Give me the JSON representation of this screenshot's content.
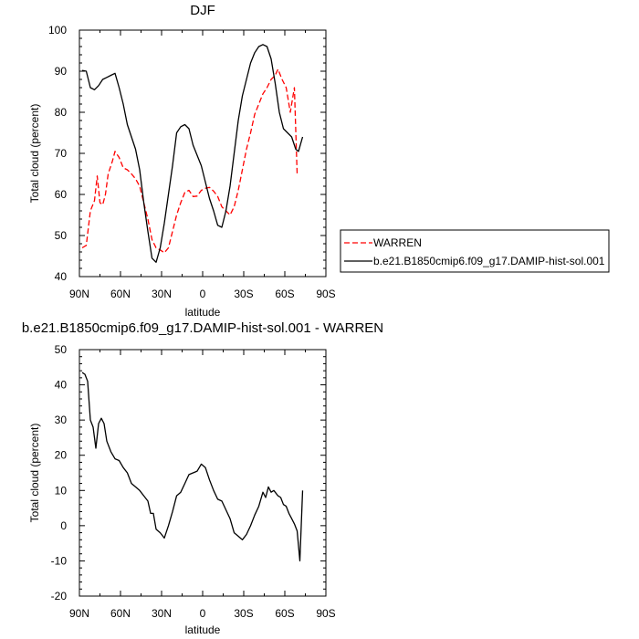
{
  "chart_data": [
    {
      "type": "line",
      "title": "DJF",
      "xlabel": "latitude",
      "ylabel": "Total cloud (percent)",
      "xlim": [
        90,
        -90
      ],
      "ylim": [
        40,
        100
      ],
      "xticks": [
        {
          "value": 90,
          "label": "90N"
        },
        {
          "value": 60,
          "label": "60N"
        },
        {
          "value": 30,
          "label": "30N"
        },
        {
          "value": 0,
          "label": "0"
        },
        {
          "value": -30,
          "label": "30S"
        },
        {
          "value": -60,
          "label": "60S"
        },
        {
          "value": -90,
          "label": "90S"
        }
      ],
      "yticks": [
        40,
        50,
        60,
        70,
        80,
        90,
        100
      ],
      "legend_position": "right",
      "series": [
        {
          "name": "WARREN",
          "color": "#ff0000",
          "dash": "dashed",
          "points": [
            [
              88,
              47
            ],
            [
              85,
              47.6
            ],
            [
              82,
              56
            ],
            [
              79,
              58.5
            ],
            [
              77,
              64.5
            ],
            [
              75,
              58
            ],
            [
              73,
              57.5
            ],
            [
              71,
              60
            ],
            [
              69,
              65
            ],
            [
              66,
              68
            ],
            [
              64,
              70.5
            ],
            [
              61,
              69
            ],
            [
              58,
              66.5
            ],
            [
              55,
              66
            ],
            [
              52,
              65
            ],
            [
              49,
              63.8
            ],
            [
              46,
              62
            ],
            [
              43,
              58
            ],
            [
              40,
              54
            ],
            [
              37,
              49
            ],
            [
              34,
              47
            ],
            [
              31,
              46.5
            ],
            [
              28,
              45.8
            ],
            [
              25,
              47
            ],
            [
              22,
              51
            ],
            [
              19,
              55
            ],
            [
              16,
              58
            ],
            [
              13,
              60.5
            ],
            [
              10,
              61
            ],
            [
              7,
              59.5
            ],
            [
              4,
              59.6
            ],
            [
              1,
              61
            ],
            [
              -2,
              61.5
            ],
            [
              -5,
              61.7
            ],
            [
              -8,
              60.8
            ],
            [
              -11,
              59.5
            ],
            [
              -14,
              57
            ],
            [
              -17,
              56
            ],
            [
              -20,
              55
            ],
            [
              -23,
              57
            ],
            [
              -26,
              61
            ],
            [
              -29,
              66
            ],
            [
              -32,
              71
            ],
            [
              -35,
              75
            ],
            [
              -38,
              79.5
            ],
            [
              -41,
              82
            ],
            [
              -44,
              84.5
            ],
            [
              -47,
              86
            ],
            [
              -50,
              88
            ],
            [
              -53,
              89
            ],
            [
              -55,
              90.5
            ],
            [
              -58,
              88
            ],
            [
              -61,
              86
            ],
            [
              -64,
              80
            ],
            [
              -67,
              86
            ],
            [
              -69,
              65
            ]
          ]
        },
        {
          "name": "b.e21.B1850cmip6.f09_g17.DAMIP-hist-sol.001",
          "color": "#000000",
          "dash": "solid",
          "points": [
            [
              88,
              90.2
            ],
            [
              85,
              90
            ],
            [
              82,
              86
            ],
            [
              79,
              85.5
            ],
            [
              76,
              86.5
            ],
            [
              73,
              88
            ],
            [
              70,
              88.5
            ],
            [
              67,
              89
            ],
            [
              64,
              89.5
            ],
            [
              61,
              86
            ],
            [
              58,
              82
            ],
            [
              55,
              77
            ],
            [
              52,
              74
            ],
            [
              49,
              71
            ],
            [
              46,
              66
            ],
            [
              43,
              58
            ],
            [
              40,
              51
            ],
            [
              37,
              44.5
            ],
            [
              34,
              43.5
            ],
            [
              31,
              47
            ],
            [
              28,
              53
            ],
            [
              25,
              60
            ],
            [
              22,
              67
            ],
            [
              19,
              75
            ],
            [
              16,
              76.5
            ],
            [
              13,
              77
            ],
            [
              10,
              76
            ],
            [
              7,
              72
            ],
            [
              4,
              69.5
            ],
            [
              1,
              67
            ],
            [
              -2,
              63
            ],
            [
              -5,
              59
            ],
            [
              -8,
              56
            ],
            [
              -11,
              52.5
            ],
            [
              -14,
              52
            ],
            [
              -17,
              56
            ],
            [
              -20,
              62
            ],
            [
              -23,
              70
            ],
            [
              -26,
              78
            ],
            [
              -29,
              84
            ],
            [
              -32,
              88
            ],
            [
              -35,
              92
            ],
            [
              -38,
              94.5
            ],
            [
              -41,
              96
            ],
            [
              -44,
              96.5
            ],
            [
              -47,
              96
            ],
            [
              -50,
              93
            ],
            [
              -53,
              87
            ],
            [
              -56,
              80
            ],
            [
              -59,
              76
            ],
            [
              -62,
              75
            ],
            [
              -65,
              74
            ],
            [
              -68,
              71
            ],
            [
              -70,
              70.5
            ],
            [
              -73,
              74
            ]
          ]
        }
      ]
    },
    {
      "type": "line",
      "title": "b.e21.B1850cmip6.f09_g17.DAMIP-hist-sol.001 - WARREN",
      "xlabel": "latitude",
      "ylabel": "Total cloud (percent)",
      "xlim": [
        90,
        -90
      ],
      "ylim": [
        -20,
        50
      ],
      "xticks": [
        {
          "value": 90,
          "label": "90N"
        },
        {
          "value": 60,
          "label": "60N"
        },
        {
          "value": 30,
          "label": "30N"
        },
        {
          "value": 0,
          "label": "0"
        },
        {
          "value": -30,
          "label": "30S"
        },
        {
          "value": -60,
          "label": "60S"
        },
        {
          "value": -90,
          "label": "90S"
        }
      ],
      "yticks": [
        -20,
        -10,
        0,
        10,
        20,
        30,
        40,
        50
      ],
      "series": [
        {
          "color": "#000000",
          "dash": "solid",
          "points": [
            [
              88,
              43.5
            ],
            [
              86,
              43
            ],
            [
              84,
              41
            ],
            [
              82,
              30
            ],
            [
              80,
              28
            ],
            [
              78,
              22
            ],
            [
              76,
              29
            ],
            [
              74,
              30.5
            ],
            [
              72,
              29
            ],
            [
              70,
              24
            ],
            [
              67,
              21
            ],
            [
              64,
              19
            ],
            [
              61,
              18.5
            ],
            [
              58,
              16.5
            ],
            [
              55,
              15
            ],
            [
              52,
              12
            ],
            [
              49,
              11
            ],
            [
              46,
              10
            ],
            [
              43,
              8.5
            ],
            [
              40,
              7
            ],
            [
              38,
              3.5
            ],
            [
              36,
              3.5
            ],
            [
              34,
              -1
            ],
            [
              31,
              -2
            ],
            [
              28,
              -3.5
            ],
            [
              25,
              0
            ],
            [
              22,
              4
            ],
            [
              19,
              8.5
            ],
            [
              16,
              9.5
            ],
            [
              13,
              12
            ],
            [
              10,
              14.5
            ],
            [
              7,
              15
            ],
            [
              4,
              15.5
            ],
            [
              1,
              17.5
            ],
            [
              -2,
              16.5
            ],
            [
              -5,
              13
            ],
            [
              -8,
              10
            ],
            [
              -11,
              7.5
            ],
            [
              -14,
              7
            ],
            [
              -17,
              4.5
            ],
            [
              -20,
              2
            ],
            [
              -23,
              -2
            ],
            [
              -26,
              -3
            ],
            [
              -29,
              -4
            ],
            [
              -32,
              -2.5
            ],
            [
              -35,
              0
            ],
            [
              -38,
              3
            ],
            [
              -41,
              5.5
            ],
            [
              -44,
              9.5
            ],
            [
              -46,
              8
            ],
            [
              -48,
              11
            ],
            [
              -50,
              9.5
            ],
            [
              -52,
              10
            ],
            [
              -55,
              8.5
            ],
            [
              -57,
              8
            ],
            [
              -59,
              6
            ],
            [
              -61,
              5.5
            ],
            [
              -63,
              3.5
            ],
            [
              -65,
              2
            ],
            [
              -67,
              0.5
            ],
            [
              -69,
              -1.5
            ],
            [
              -71,
              -10
            ],
            [
              -73,
              10
            ]
          ]
        }
      ]
    }
  ]
}
